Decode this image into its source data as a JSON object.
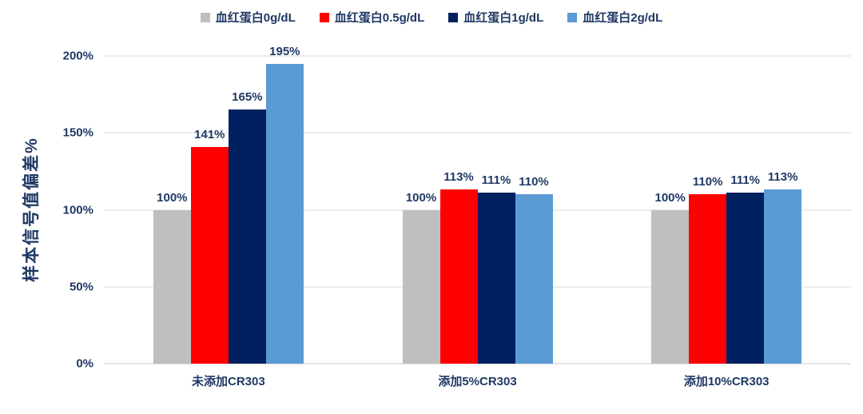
{
  "chart": {
    "background_color": "#ffffff",
    "text_color": "#1f3864",
    "gridline_color": "#d9d9d9",
    "axis_line_color": "#c9c9c9"
  },
  "chart_data": {
    "type": "bar",
    "title": "",
    "xlabel": "",
    "ylabel": "样本信号值偏差%",
    "ylim": [
      0,
      200
    ],
    "ytick_values": [
      0,
      50,
      100,
      150,
      200
    ],
    "ytick_labels": [
      "0%",
      "50%",
      "100%",
      "150%",
      "200%"
    ],
    "grid": true,
    "legend_position": "top",
    "categories": [
      "未添加CR303",
      "添加5%CR303",
      "添加10%CR303"
    ],
    "series": [
      {
        "name": "血红蛋白0g/dL",
        "color": "#bfbfbf",
        "values": [
          100,
          100,
          100
        ],
        "labels": [
          "100%",
          "100%",
          "100%"
        ]
      },
      {
        "name": "血红蛋白0.5g/dL",
        "color": "#ff0000",
        "values": [
          141,
          113,
          110
        ],
        "labels": [
          "141%",
          "113%",
          "110%"
        ]
      },
      {
        "name": "血红蛋白1g/dL",
        "color": "#002060",
        "values": [
          165,
          111,
          111
        ],
        "labels": [
          "165%",
          "111%",
          "111%"
        ]
      },
      {
        "name": "血红蛋白2g/dL",
        "color": "#5b9bd5",
        "values": [
          195,
          110,
          113
        ],
        "labels": [
          "195%",
          "110%",
          "113%"
        ]
      }
    ]
  }
}
